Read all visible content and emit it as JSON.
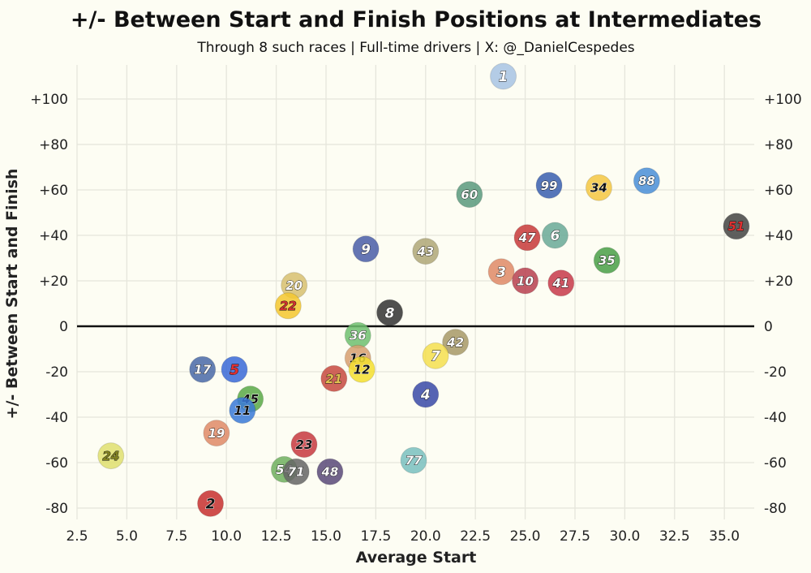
{
  "chart_data": {
    "type": "scatter",
    "title": "+/- Between Start and Finish Positions at Intermediates",
    "subtitle": "Through 8 such races | Full-time drivers | X: @_DanielCespedes",
    "xlabel": "Average Start",
    "ylabel": "+/- Between Start and Finish",
    "xlim": [
      2.5,
      36.5
    ],
    "ylim": [
      -85,
      115
    ],
    "x_ticks": [
      "2.5",
      "5.0",
      "7.5",
      "10.0",
      "12.5",
      "15.0",
      "17.5",
      "20.0",
      "22.5",
      "25.0",
      "27.5",
      "30.0",
      "32.5",
      "35.0"
    ],
    "y_ticks": [
      "+100",
      "+80",
      "+60",
      "+40",
      "+20",
      "0",
      "-20",
      "-40",
      "-60",
      "-80"
    ],
    "y_tick_values": [
      100,
      80,
      60,
      40,
      20,
      0,
      -20,
      -40,
      -60,
      -80
    ],
    "grid": true,
    "points": [
      {
        "label": "1",
        "x": 23.9,
        "y": 110,
        "color": "#a8c4e4",
        "text": "#ffffff"
      },
      {
        "label": "88",
        "x": 31.1,
        "y": 64,
        "color": "#4a8fd8",
        "text": "#ffffff"
      },
      {
        "label": "99",
        "x": 26.2,
        "y": 62,
        "color": "#3a5fb0",
        "text": "#ffffff"
      },
      {
        "label": "34",
        "x": 28.7,
        "y": 61,
        "color": "#f5c842",
        "text": "#111111"
      },
      {
        "label": "60",
        "x": 22.2,
        "y": 58,
        "color": "#5a9a7e",
        "text": "#ffffff"
      },
      {
        "label": "51",
        "x": 35.6,
        "y": 44,
        "color": "#444444",
        "text": "#e03030"
      },
      {
        "label": "47",
        "x": 25.1,
        "y": 39,
        "color": "#c83a3a",
        "text": "#ffffff"
      },
      {
        "label": "6",
        "x": 26.5,
        "y": 40,
        "color": "#6aaa98",
        "text": "#ffffff"
      },
      {
        "label": "9",
        "x": 17.0,
        "y": 34,
        "color": "#4a5ea8",
        "text": "#ffffff"
      },
      {
        "label": "43",
        "x": 20.0,
        "y": 33,
        "color": "#b0a878",
        "text": "#ffffff"
      },
      {
        "label": "35",
        "x": 29.1,
        "y": 29,
        "color": "#4aa048",
        "text": "#ffffff"
      },
      {
        "label": "3",
        "x": 23.8,
        "y": 24,
        "color": "#e08a68",
        "text": "#ffffff"
      },
      {
        "label": "10",
        "x": 25.0,
        "y": 20,
        "color": "#b84050",
        "text": "#ffffff"
      },
      {
        "label": "41",
        "x": 26.8,
        "y": 19,
        "color": "#c83a4a",
        "text": "#ffffff"
      },
      {
        "label": "20",
        "x": 13.4,
        "y": 18,
        "color": "#d8c070",
        "text": "#ffffff"
      },
      {
        "label": "22",
        "x": 13.1,
        "y": 9,
        "color": "#f5c830",
        "text": "#d03030"
      },
      {
        "label": "8",
        "x": 18.2,
        "y": 6,
        "color": "#333333",
        "text": "#ffffff"
      },
      {
        "label": "36",
        "x": 16.6,
        "y": -4,
        "color": "#70c070",
        "text": "#ffffff"
      },
      {
        "label": "42",
        "x": 21.5,
        "y": -7,
        "color": "#a89a68",
        "text": "#ffffff"
      },
      {
        "label": "7",
        "x": 20.5,
        "y": -13,
        "color": "#f5e050",
        "text": "#ffffff"
      },
      {
        "label": "16",
        "x": 16.6,
        "y": -14,
        "color": "#d8a070",
        "text": "#111111"
      },
      {
        "label": "12",
        "x": 16.8,
        "y": -19,
        "color": "#f5e030",
        "text": "#111111"
      },
      {
        "label": "17",
        "x": 8.8,
        "y": -19,
        "color": "#4a6aa8",
        "text": "#ffffff"
      },
      {
        "label": "5",
        "x": 10.4,
        "y": -19,
        "color": "#3a6ad8",
        "text": "#e03030"
      },
      {
        "label": "21",
        "x": 15.4,
        "y": -23,
        "color": "#c84a40",
        "text": "#e0c050"
      },
      {
        "label": "4",
        "x": 20.0,
        "y": -30,
        "color": "#3a4aa8",
        "text": "#ffffff"
      },
      {
        "label": "45",
        "x": 11.2,
        "y": -32,
        "color": "#5aaa48",
        "text": "#111111"
      },
      {
        "label": "11",
        "x": 10.8,
        "y": -37,
        "color": "#3a7ad8",
        "text": "#111111"
      },
      {
        "label": "19",
        "x": 9.5,
        "y": -47,
        "color": "#e08a68",
        "text": "#ffffff"
      },
      {
        "label": "23",
        "x": 13.9,
        "y": -52,
        "color": "#c83a40",
        "text": "#111111"
      },
      {
        "label": "77",
        "x": 19.4,
        "y": -59,
        "color": "#7ac0c0",
        "text": "#ffffff"
      },
      {
        "label": "24",
        "x": 4.2,
        "y": -57,
        "color": "#e0e070",
        "text": "#808020"
      },
      {
        "label": "54",
        "x": 12.9,
        "y": -63,
        "color": "#70b060",
        "text": "#ffffff"
      },
      {
        "label": "71",
        "x": 13.5,
        "y": -64,
        "color": "#666666",
        "text": "#ffffff"
      },
      {
        "label": "48",
        "x": 15.2,
        "y": -64,
        "color": "#5a4a7a",
        "text": "#ffffff"
      },
      {
        "label": "2",
        "x": 9.2,
        "y": -78,
        "color": "#c83030",
        "text": "#111111"
      }
    ]
  }
}
